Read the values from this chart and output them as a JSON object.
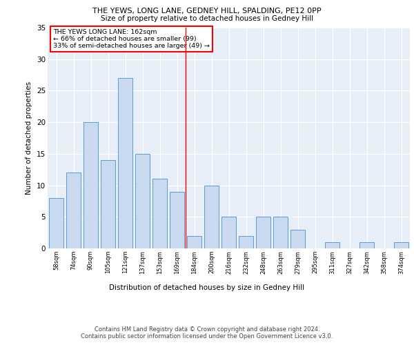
{
  "title1": "THE YEWS, LONG LANE, GEDNEY HILL, SPALDING, PE12 0PP",
  "title2": "Size of property relative to detached houses in Gedney Hill",
  "xlabel": "Distribution of detached houses by size in Gedney Hill",
  "ylabel": "Number of detached properties",
  "categories": [
    "58sqm",
    "74sqm",
    "90sqm",
    "105sqm",
    "121sqm",
    "137sqm",
    "153sqm",
    "169sqm",
    "184sqm",
    "200sqm",
    "216sqm",
    "232sqm",
    "248sqm",
    "263sqm",
    "279sqm",
    "295sqm",
    "311sqm",
    "327sqm",
    "342sqm",
    "358sqm",
    "374sqm"
  ],
  "values": [
    8,
    12,
    20,
    14,
    27,
    15,
    11,
    9,
    2,
    10,
    5,
    2,
    5,
    5,
    3,
    0,
    1,
    0,
    1,
    0,
    1
  ],
  "bar_color": "#c8d9f0",
  "bar_edge_color": "#5b9bd5",
  "vline_x": 7.5,
  "vline_color": "red",
  "annotation_text": "THE YEWS LONG LANE: 162sqm\n← 66% of detached houses are smaller (99)\n33% of semi-detached houses are larger (49) →",
  "annotation_box_color": "white",
  "annotation_box_edge": "red",
  "ylim": [
    0,
    35
  ],
  "yticks": [
    0,
    5,
    10,
    15,
    20,
    25,
    30,
    35
  ],
  "footer1": "Contains HM Land Registry data © Crown copyright and database right 2024.",
  "footer2": "Contains public sector information licensed under the Open Government Licence v3.0.",
  "plot_bg_color": "#e8eef8"
}
